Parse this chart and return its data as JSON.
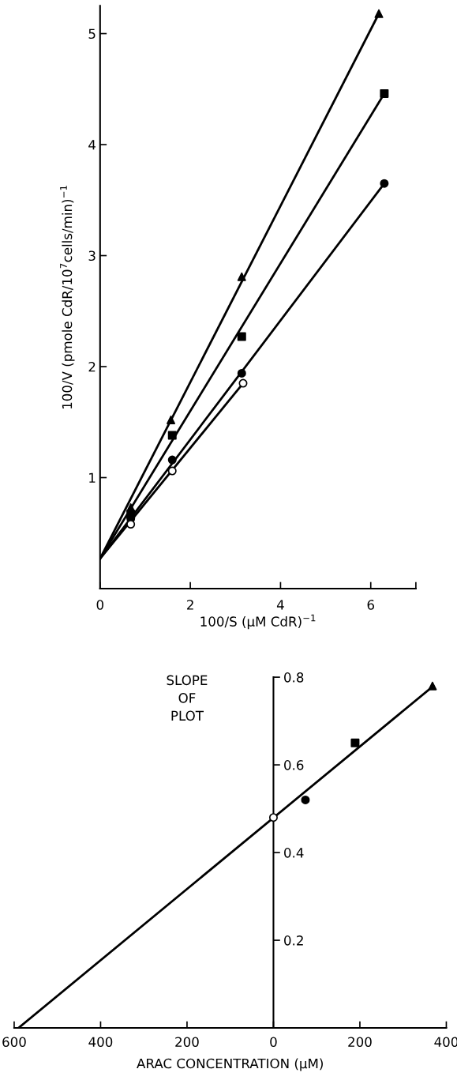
{
  "chart_data": [
    {
      "type": "scatter",
      "xlabel": "100/S (μM CdR)$^{−1}$",
      "ylabel": "100/V (pmole CdR/10$^{7}$cells/min)$^{−1}$",
      "xlim": [
        0,
        7
      ],
      "xticks": [
        0,
        2,
        4,
        6,
        {
          "value": 7,
          "label": null
        }
      ],
      "ylim": [
        0,
        5.25
      ],
      "yticks": [
        1,
        2,
        3,
        4,
        5
      ],
      "grid": false,
      "legend": false,
      "series": [
        {
          "type": "line",
          "color": "#000000",
          "marker": "none",
          "x": [
            0,
            6.18
          ],
          "values": [
            0.27,
            5.18
          ]
        },
        {
          "type": "line",
          "color": "#000000",
          "marker": "none",
          "x": [
            0,
            6.3
          ],
          "values": [
            0.27,
            4.46
          ]
        },
        {
          "type": "line",
          "color": "#000000",
          "marker": "none",
          "x": [
            0,
            6.3
          ],
          "values": [
            0.27,
            3.65
          ]
        },
        {
          "type": "line",
          "color": "#000000",
          "marker": "none",
          "x": [
            0,
            3.17
          ],
          "values": [
            0.27,
            1.85
          ]
        },
        {
          "color": "#000000",
          "marker": "triangle",
          "x": [
            0.68,
            1.57,
            3.14,
            6.18
          ],
          "values": [
            0.73,
            1.52,
            2.81,
            5.18
          ]
        },
        {
          "color": "#000000",
          "marker": "square",
          "x": [
            0.68,
            1.6,
            3.14,
            6.3
          ],
          "values": [
            0.67,
            1.38,
            2.27,
            4.46
          ]
        },
        {
          "color": "#000000",
          "marker": "circle",
          "x": [
            0.68,
            1.6,
            3.14,
            6.3
          ],
          "values": [
            0.63,
            1.16,
            1.94,
            3.65
          ]
        },
        {
          "color": "#ffffff",
          "marker": "circle",
          "x": [
            0.68,
            1.6,
            3.17
          ],
          "values": [
            0.58,
            1.06,
            1.85
          ]
        }
      ]
    },
    {
      "type": "scatter",
      "xlabel": "ARAC CONCENTRATION (μM)",
      "ylabel": "SLOPE\nOF\nPLOT",
      "xlim": [
        -600,
        400
      ],
      "xticks": [
        {
          "value": -600,
          "label": "600"
        },
        {
          "value": -400,
          "label": "400"
        },
        {
          "value": -200,
          "label": "200"
        },
        0,
        200,
        400
      ],
      "ylim": [
        0,
        0.8
      ],
      "yticks": [
        0.2,
        0.4,
        0.6,
        0.8
      ],
      "grid": false,
      "legend": false,
      "series": [
        {
          "type": "line",
          "color": "#000000",
          "marker": "none",
          "x": [
            -590,
            370
          ],
          "values": [
            0,
            0.78
          ]
        },
        {
          "color": "#ffffff",
          "marker": "circle",
          "x": [
            0
          ],
          "values": [
            0.48
          ]
        },
        {
          "color": "#000000",
          "marker": "circle",
          "x": [
            74
          ],
          "values": [
            0.52
          ]
        },
        {
          "color": "#000000",
          "marker": "square",
          "x": [
            189
          ],
          "values": [
            0.65
          ]
        },
        {
          "color": "#000000",
          "marker": "triangle",
          "x": [
            368
          ],
          "values": [
            0.78
          ]
        }
      ]
    }
  ]
}
